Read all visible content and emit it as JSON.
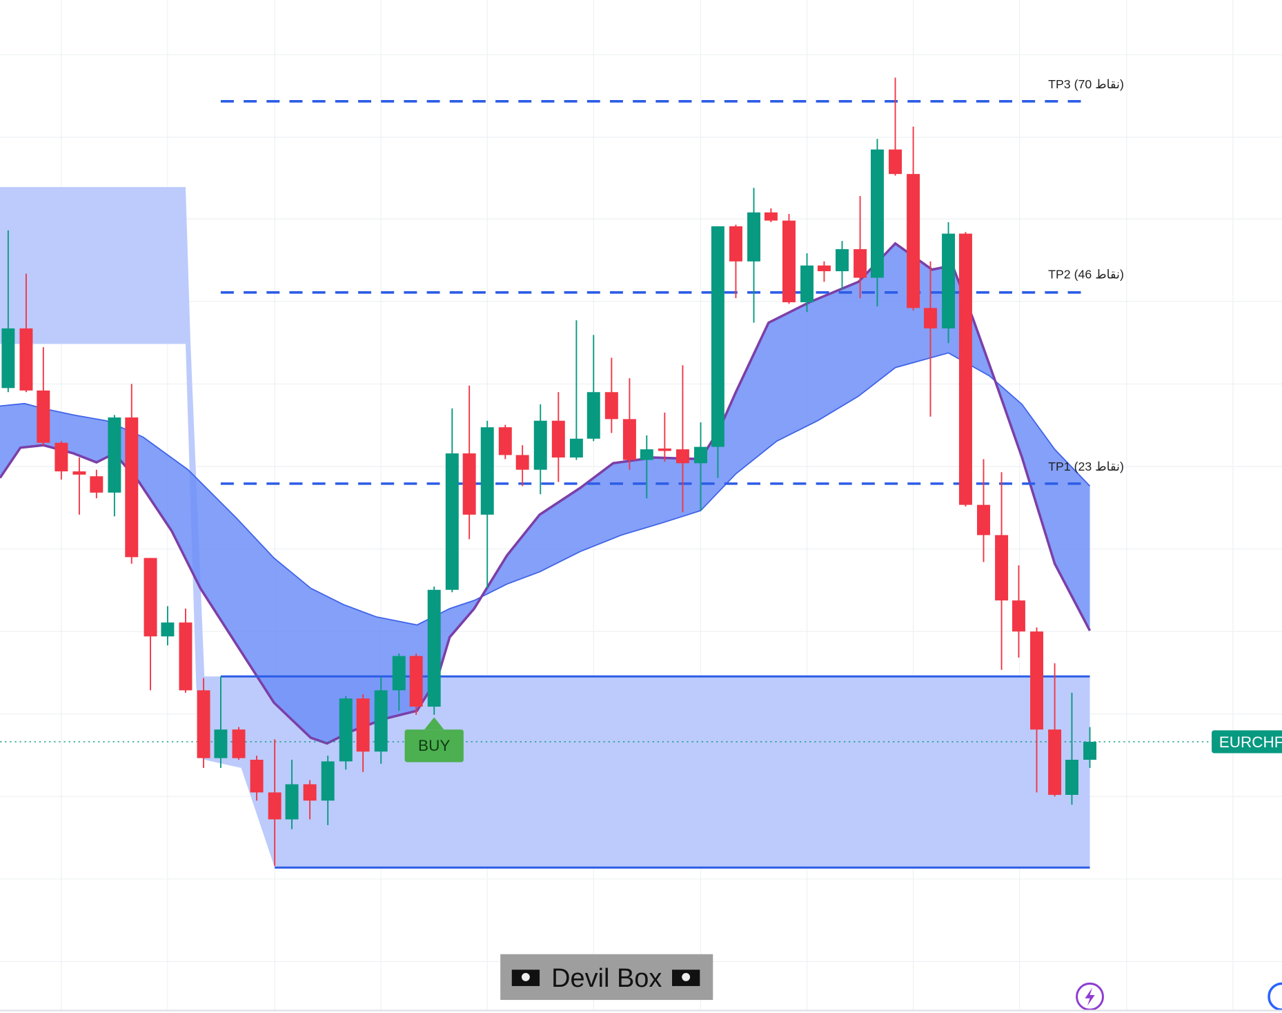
{
  "tp_labels": [
    "TP3 (70 نقاط)",
    "TP2 (46 نقاط)",
    "TP1 (23 نقاط)"
  ],
  "signal": "BUY",
  "footer_title": "Devil Box",
  "symbol_tag": "EURCHF"
}
